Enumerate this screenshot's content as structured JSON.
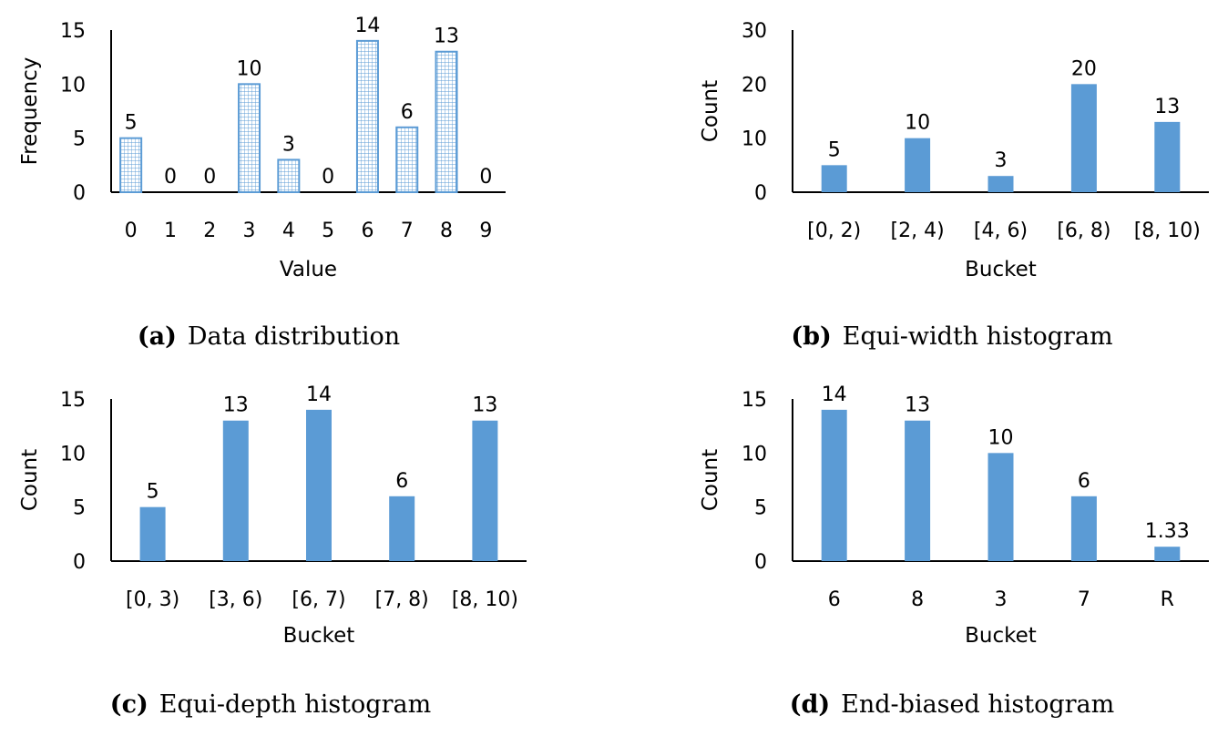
{
  "colors": {
    "bar_fill": "#5b9bd5",
    "bar_outline": "#5b9bd5",
    "hatch_bg": "#ffffff",
    "axis": "#000000"
  },
  "chart_data": [
    {
      "id": "a",
      "type": "bar",
      "style": "hatched-grid",
      "caption_tag": "(a)",
      "caption": "Data distribution",
      "xlabel": "Value",
      "ylabel": "Frequency",
      "ylim": [
        0,
        15
      ],
      "yticks": [
        0,
        5,
        10,
        15
      ],
      "categories": [
        "0",
        "1",
        "2",
        "3",
        "4",
        "5",
        "6",
        "7",
        "8",
        "9"
      ],
      "values": [
        5,
        0,
        0,
        10,
        3,
        0,
        14,
        6,
        13,
        0
      ],
      "data_labels": [
        "5",
        "0",
        "0",
        "10",
        "3",
        "0",
        "14",
        "6",
        "13",
        "0"
      ]
    },
    {
      "id": "b",
      "type": "bar",
      "style": "solid",
      "caption_tag": "(b)",
      "caption": "Equi-width histogram",
      "xlabel": "Bucket",
      "ylabel": "Count",
      "ylim": [
        0,
        30
      ],
      "yticks": [
        0,
        10,
        20,
        30
      ],
      "categories": [
        "[0, 2)",
        "[2, 4)",
        "[4, 6)",
        "[6, 8)",
        "[8, 10)"
      ],
      "values": [
        5,
        10,
        3,
        20,
        13
      ],
      "data_labels": [
        "5",
        "10",
        "3",
        "20",
        "13"
      ]
    },
    {
      "id": "c",
      "type": "bar",
      "style": "solid",
      "caption_tag": "(c)",
      "caption": "Equi-depth histogram",
      "xlabel": "Bucket",
      "ylabel": "Count",
      "ylim": [
        0,
        15
      ],
      "yticks": [
        0,
        5,
        10,
        15
      ],
      "categories": [
        "[0, 3)",
        "[3, 6)",
        "[6, 7)",
        "[7, 8)",
        "[8, 10)"
      ],
      "values": [
        5,
        13,
        14,
        6,
        13
      ],
      "data_labels": [
        "5",
        "13",
        "14",
        "6",
        "13"
      ]
    },
    {
      "id": "d",
      "type": "bar",
      "style": "solid",
      "caption_tag": "(d)",
      "caption": "End-biased histogram",
      "xlabel": "Bucket",
      "ylabel": "Count",
      "ylim": [
        0,
        15
      ],
      "yticks": [
        0,
        5,
        10,
        15
      ],
      "categories": [
        "6",
        "8",
        "3",
        "7",
        "R"
      ],
      "values": [
        14,
        13,
        10,
        6,
        1.33
      ],
      "data_labels": [
        "14",
        "13",
        "10",
        "6",
        "1.33"
      ]
    }
  ]
}
